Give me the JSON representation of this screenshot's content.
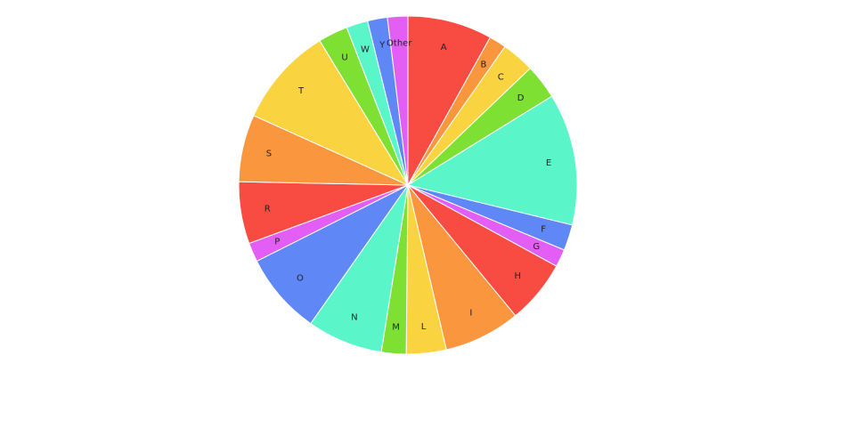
{
  "chart_data": {
    "type": "pie",
    "title": "",
    "categories": [
      "A",
      "B",
      "C",
      "D",
      "E",
      "F",
      "G",
      "H",
      "I",
      "L",
      "M",
      "N",
      "O",
      "P",
      "R",
      "S",
      "T",
      "U",
      "W",
      "Y",
      "Other"
    ],
    "values": [
      8.08,
      1.64,
      3.14,
      3.33,
      12.6,
      2.47,
      1.69,
      6.08,
      7.31,
      3.81,
      2.36,
      7.22,
      7.83,
      1.83,
      5.92,
      6.42,
      9.53,
      2.83,
      2.06,
      1.89,
      1.94
    ],
    "colors": [
      "#F84C43",
      "#F9963E",
      "#F9D340",
      "#7FE034",
      "#5AF5C9",
      "#5F87F5",
      "#E25EF5"
    ],
    "start_angle": "top",
    "direction": "clockwise",
    "legend": "none"
  }
}
